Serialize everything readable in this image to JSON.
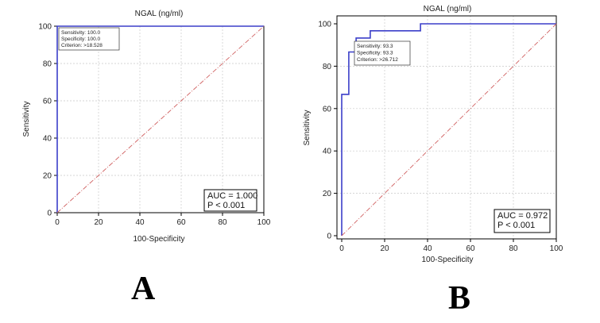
{
  "chart_data": [
    {
      "type": "line",
      "panel": "A",
      "title": "NGAL (ng/ml)",
      "xlabel": "100-Specificity",
      "ylabel": "Sensitivity",
      "xlim": [
        0,
        100
      ],
      "ylim": [
        0,
        100
      ],
      "xticks": [
        "0",
        "20",
        "40",
        "60",
        "80",
        "100"
      ],
      "yticks": [
        "0",
        "20",
        "40",
        "60",
        "80",
        "100"
      ],
      "grid": true,
      "series": [
        {
          "name": "ROC curve",
          "color": "#3b3fc9",
          "x": [
            0,
            0,
            100
          ],
          "y": [
            0,
            100,
            100
          ]
        },
        {
          "name": "Reference line",
          "color": "#d06060",
          "style": "dash-dot",
          "x": [
            0,
            100
          ],
          "y": [
            0,
            100
          ]
        }
      ],
      "cutoff_box": {
        "lines": [
          "Sensitivity: 100.0",
          "Specificity: 100.0",
          "Criterion: >18.528"
        ],
        "position": "top-left"
      },
      "annotation": {
        "auc": "AUC = 1.000",
        "p": "P < 0.001",
        "position": "bottom-right"
      }
    },
    {
      "type": "line",
      "panel": "B",
      "title": "NGAL (ng/ml)",
      "xlabel": "100-Specificity",
      "ylabel": "Sensitivity",
      "xlim": [
        0,
        100
      ],
      "ylim": [
        0,
        100
      ],
      "xticks": [
        "0",
        "20",
        "40",
        "60",
        "80",
        "100"
      ],
      "yticks": [
        "0",
        "20",
        "40",
        "60",
        "80",
        "100"
      ],
      "grid": true,
      "series": [
        {
          "name": "ROC curve",
          "color": "#3b3fc9",
          "x": [
            0,
            0,
            3.3,
            3.3,
            6.7,
            6.7,
            13.3,
            13.3,
            36.7,
            36.7,
            100
          ],
          "y": [
            0,
            66.7,
            66.7,
            86.7,
            86.7,
            93.3,
            93.3,
            96.7,
            96.7,
            100,
            100
          ]
        },
        {
          "name": "Reference line",
          "color": "#d06060",
          "style": "dash-dot",
          "x": [
            0,
            100
          ],
          "y": [
            0,
            100
          ]
        }
      ],
      "cutoff_box": {
        "lines": [
          "Sensitivity: 93.3",
          "Specificity: 93.3",
          "Criterion: >26.712"
        ],
        "position": "top-left"
      },
      "annotation": {
        "auc": "AUC = 0.972",
        "p": "P < 0.001",
        "position": "bottom-right"
      }
    }
  ]
}
